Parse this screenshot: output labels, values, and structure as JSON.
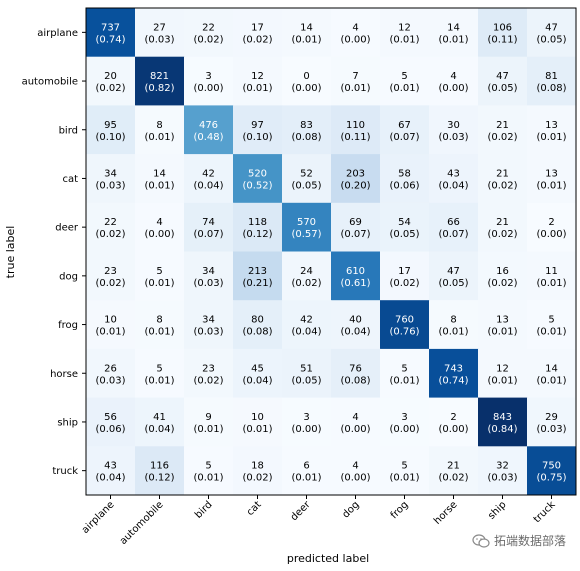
{
  "chart_data": {
    "type": "heatmap",
    "title": "",
    "xlabel": "predicted label",
    "ylabel": "true label",
    "x_categories": [
      "airplane",
      "automobile",
      "bird",
      "cat",
      "deer",
      "dog",
      "frog",
      "horse",
      "ship",
      "truck"
    ],
    "y_categories": [
      "airplane",
      "automobile",
      "bird",
      "cat",
      "deer",
      "dog",
      "frog",
      "horse",
      "ship",
      "truck"
    ],
    "values": [
      [
        737,
        27,
        22,
        17,
        14,
        4,
        12,
        14,
        106,
        47
      ],
      [
        20,
        821,
        3,
        12,
        0,
        7,
        5,
        4,
        47,
        81
      ],
      [
        95,
        8,
        476,
        97,
        83,
        110,
        67,
        30,
        21,
        13
      ],
      [
        34,
        14,
        42,
        520,
        52,
        203,
        58,
        43,
        21,
        13
      ],
      [
        22,
        4,
        74,
        118,
        570,
        69,
        54,
        66,
        21,
        2
      ],
      [
        23,
        5,
        34,
        213,
        24,
        610,
        17,
        47,
        16,
        11
      ],
      [
        10,
        8,
        34,
        80,
        42,
        40,
        760,
        8,
        13,
        5
      ],
      [
        26,
        5,
        23,
        45,
        51,
        76,
        5,
        743,
        12,
        14
      ],
      [
        56,
        41,
        9,
        10,
        3,
        4,
        3,
        2,
        843,
        29
      ],
      [
        43,
        116,
        5,
        18,
        6,
        4,
        5,
        21,
        32,
        750
      ]
    ],
    "normalized": [
      [
        "(0.74)",
        "(0.03)",
        "(0.02)",
        "(0.02)",
        "(0.01)",
        "(0.00)",
        "(0.01)",
        "(0.01)",
        "(0.11)",
        "(0.05)"
      ],
      [
        "(0.02)",
        "(0.82)",
        "(0.00)",
        "(0.01)",
        "(0.00)",
        "(0.01)",
        "(0.01)",
        "(0.00)",
        "(0.05)",
        "(0.08)"
      ],
      [
        "(0.10)",
        "(0.01)",
        "(0.48)",
        "(0.10)",
        "(0.08)",
        "(0.11)",
        "(0.07)",
        "(0.03)",
        "(0.02)",
        "(0.01)"
      ],
      [
        "(0.03)",
        "(0.01)",
        "(0.04)",
        "(0.52)",
        "(0.05)",
        "(0.20)",
        "(0.06)",
        "(0.04)",
        "(0.02)",
        "(0.01)"
      ],
      [
        "(0.02)",
        "(0.00)",
        "(0.07)",
        "(0.12)",
        "(0.57)",
        "(0.07)",
        "(0.05)",
        "(0.07)",
        "(0.02)",
        "(0.00)"
      ],
      [
        "(0.02)",
        "(0.01)",
        "(0.03)",
        "(0.21)",
        "(0.02)",
        "(0.61)",
        "(0.02)",
        "(0.05)",
        "(0.02)",
        "(0.01)"
      ],
      [
        "(0.01)",
        "(0.01)",
        "(0.03)",
        "(0.08)",
        "(0.04)",
        "(0.04)",
        "(0.76)",
        "(0.01)",
        "(0.01)",
        "(0.01)"
      ],
      [
        "(0.03)",
        "(0.01)",
        "(0.02)",
        "(0.04)",
        "(0.05)",
        "(0.08)",
        "(0.01)",
        "(0.74)",
        "(0.01)",
        "(0.01)"
      ],
      [
        "(0.06)",
        "(0.04)",
        "(0.01)",
        "(0.01)",
        "(0.00)",
        "(0.00)",
        "(0.00)",
        "(0.00)",
        "(0.84)",
        "(0.03)"
      ],
      [
        "(0.04)",
        "(0.12)",
        "(0.01)",
        "(0.02)",
        "(0.01)",
        "(0.00)",
        "(0.01)",
        "(0.02)",
        "(0.03)",
        "(0.75)"
      ]
    ],
    "colormap": "Blues",
    "grid": false,
    "legend": "none"
  },
  "watermark": {
    "text": "拓端数据部落",
    "icon": "wechat-icon"
  },
  "colors": {
    "max": "#08306b",
    "min": "#f7fbff",
    "text_dark": "#000000",
    "text_light": "#ffffff"
  }
}
